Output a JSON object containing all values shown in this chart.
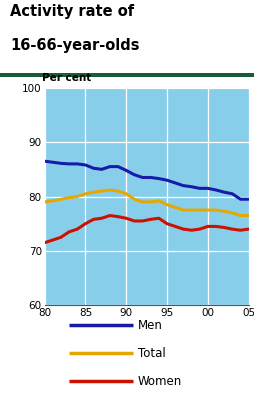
{
  "title_line1": "Activity rate of",
  "title_line2": "16-66-year-olds",
  "ylabel": "Per cent",
  "title_color": "#000000",
  "separator_color": "#1a5c3a",
  "bg_color": "#87ceeb",
  "fig_bg_color": "#ffffff",
  "xlim": [
    80,
    105
  ],
  "ylim": [
    60,
    100
  ],
  "xticks": [
    80,
    85,
    90,
    95,
    100,
    105
  ],
  "xticklabels": [
    "80",
    "85",
    "90",
    "95",
    "00",
    "05"
  ],
  "yticks": [
    60,
    70,
    80,
    90,
    100
  ],
  "men_x": [
    80,
    81,
    82,
    83,
    84,
    85,
    86,
    87,
    88,
    89,
    90,
    91,
    92,
    93,
    94,
    95,
    96,
    97,
    98,
    99,
    100,
    101,
    102,
    103,
    104,
    105
  ],
  "men_y": [
    86.5,
    86.3,
    86.1,
    86.0,
    86.0,
    85.8,
    85.2,
    85.0,
    85.5,
    85.5,
    84.8,
    84.0,
    83.5,
    83.5,
    83.3,
    83.0,
    82.5,
    82.0,
    81.8,
    81.5,
    81.5,
    81.2,
    80.8,
    80.5,
    79.5,
    79.5
  ],
  "total_x": [
    80,
    81,
    82,
    83,
    84,
    85,
    86,
    87,
    88,
    89,
    90,
    91,
    92,
    93,
    94,
    95,
    96,
    97,
    98,
    99,
    100,
    101,
    102,
    103,
    104,
    105
  ],
  "total_y": [
    79.0,
    79.2,
    79.5,
    79.8,
    80.0,
    80.5,
    80.8,
    81.0,
    81.2,
    81.0,
    80.5,
    79.5,
    79.0,
    79.0,
    79.2,
    78.5,
    78.0,
    77.5,
    77.5,
    77.5,
    77.5,
    77.5,
    77.3,
    77.0,
    76.5,
    76.5
  ],
  "women_x": [
    80,
    81,
    82,
    83,
    84,
    85,
    86,
    87,
    88,
    89,
    90,
    91,
    92,
    93,
    94,
    95,
    96,
    97,
    98,
    99,
    100,
    101,
    102,
    103,
    104,
    105
  ],
  "women_y": [
    71.5,
    72.0,
    72.5,
    73.5,
    74.0,
    75.0,
    75.8,
    76.0,
    76.5,
    76.3,
    76.0,
    75.5,
    75.5,
    75.8,
    76.0,
    75.0,
    74.5,
    74.0,
    73.8,
    74.0,
    74.5,
    74.5,
    74.3,
    74.0,
    73.8,
    74.0
  ],
  "men_color": "#1a1aaa",
  "total_color": "#e6a800",
  "women_color": "#cc1100",
  "linewidth": 2.2,
  "grid_color": "#ffffff",
  "legend_items": [
    "Men",
    "Total",
    "Women"
  ],
  "legend_colors": [
    "#1a1aaa",
    "#e6a800",
    "#cc1100"
  ]
}
